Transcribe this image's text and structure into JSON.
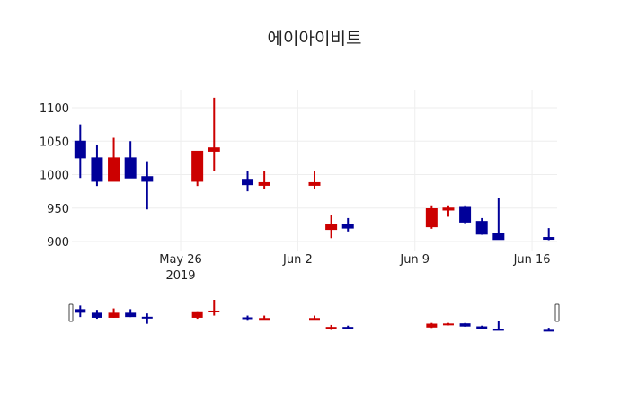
{
  "chart_data": {
    "type": "candlestick",
    "title": "에이아이비트",
    "xlabel": "",
    "ylabel": "",
    "ylim": [
      890,
      1125
    ],
    "y_ticks": [
      900,
      950,
      1000,
      1050,
      1100
    ],
    "x_ticks": [
      {
        "date": "2019-05-26",
        "label": "May 26",
        "sublabel": "2019"
      },
      {
        "date": "2019-06-02",
        "label": "Jun 2"
      },
      {
        "date": "2019-06-09",
        "label": "Jun 9"
      },
      {
        "date": "2019-06-16",
        "label": "Jun 16"
      }
    ],
    "x_range": [
      "2019-05-19T12:00",
      "2019-06-17T12:00"
    ],
    "grid": true,
    "increasing_color": "#cc0000",
    "decreasing_color": "#000099",
    "rangeslider": true,
    "series": [
      {
        "date": "2019-05-20",
        "open": 1050,
        "high": 1075,
        "low": 995,
        "close": 1025
      },
      {
        "date": "2019-05-21",
        "open": 1025,
        "high": 1045,
        "low": 983,
        "close": 990
      },
      {
        "date": "2019-05-22",
        "open": 990,
        "high": 1055,
        "low": 990,
        "close": 1025
      },
      {
        "date": "2019-05-23",
        "open": 1025,
        "high": 1050,
        "low": 995,
        "close": 995
      },
      {
        "date": "2019-05-24",
        "open": 997,
        "high": 1020,
        "low": 948,
        "close": 990
      },
      {
        "date": "2019-05-27",
        "open": 990,
        "high": 1035,
        "low": 983,
        "close": 1035
      },
      {
        "date": "2019-05-28",
        "open": 1035,
        "high": 1115,
        "low": 1005,
        "close": 1040
      },
      {
        "date": "2019-05-30",
        "open": 993,
        "high": 1005,
        "low": 975,
        "close": 985
      },
      {
        "date": "2019-05-31",
        "open": 984,
        "high": 1005,
        "low": 978,
        "close": 988
      },
      {
        "date": "2019-06-03",
        "open": 984,
        "high": 1005,
        "low": 978,
        "close": 988
      },
      {
        "date": "2019-06-04",
        "open": 918,
        "high": 940,
        "low": 905,
        "close": 926
      },
      {
        "date": "2019-06-05",
        "open": 926,
        "high": 935,
        "low": 915,
        "close": 920
      },
      {
        "date": "2019-06-10",
        "open": 922,
        "high": 954,
        "low": 919,
        "close": 949
      },
      {
        "date": "2019-06-11",
        "open": 947,
        "high": 954,
        "low": 937,
        "close": 950
      },
      {
        "date": "2019-06-12",
        "open": 951,
        "high": 954,
        "low": 927,
        "close": 929
      },
      {
        "date": "2019-06-13",
        "open": 930,
        "high": 935,
        "low": 910,
        "close": 911
      },
      {
        "date": "2019-06-14",
        "open": 912,
        "high": 965,
        "low": 903,
        "close": 903
      },
      {
        "date": "2019-06-17",
        "open": 906,
        "high": 920,
        "low": 902,
        "close": 904
      }
    ]
  }
}
